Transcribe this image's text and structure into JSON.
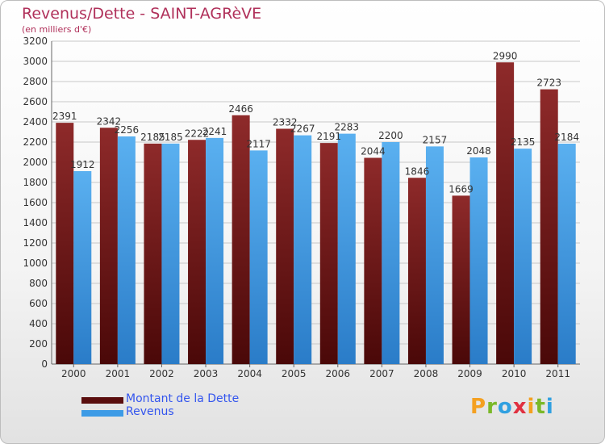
{
  "header": {
    "title": "Revenus/Dette - SAINT-AGRèVE",
    "subtitle": "(en milliers d'€)"
  },
  "colors": {
    "dette": "#7b1c1c",
    "revenus": "#3d9be6",
    "title": "#b0305a",
    "legend_text": "#3355ee"
  },
  "legend": {
    "items": [
      {
        "label": "Montant de la Dette",
        "color": "#5a0e0e"
      },
      {
        "label": "Revenus",
        "color": "#3d9be6"
      }
    ]
  },
  "logo": {
    "text": "Proxiti",
    "letters": [
      {
        "ch": "P",
        "color": "#f4a020"
      },
      {
        "ch": "r",
        "color": "#7ab828"
      },
      {
        "ch": "o",
        "color": "#30a0e0"
      },
      {
        "ch": "x",
        "color": "#e03040"
      },
      {
        "ch": "i",
        "color": "#f4a020"
      },
      {
        "ch": "t",
        "color": "#7ab828"
      },
      {
        "ch": "i",
        "color": "#30a0e0"
      }
    ]
  },
  "chart_data": {
    "type": "bar",
    "title": "Revenus/Dette - SAINT-AGRèVE",
    "subtitle": "(en milliers d'€)",
    "xlabel": "",
    "ylabel": "",
    "ylim": [
      0,
      3200
    ],
    "yticks": [
      0,
      200,
      400,
      600,
      800,
      1000,
      1200,
      1400,
      1600,
      1800,
      2000,
      2200,
      2400,
      2600,
      2800,
      3000,
      3200
    ],
    "grid": true,
    "legend_position": "bottom-left",
    "categories": [
      "2000",
      "2001",
      "2002",
      "2003",
      "2004",
      "2005",
      "2006",
      "2007",
      "2008",
      "2009",
      "2010",
      "2011"
    ],
    "series": [
      {
        "name": "Montant de la Dette",
        "values": [
          2391,
          2342,
          2185,
          2222,
          2466,
          2332,
          2191,
          2044,
          1846,
          1669,
          2990,
          2723
        ]
      },
      {
        "name": "Revenus",
        "values": [
          1912,
          2256,
          2185,
          2241,
          2117,
          2267,
          2283,
          2200,
          2157,
          2048,
          2135,
          2184
        ]
      }
    ]
  }
}
